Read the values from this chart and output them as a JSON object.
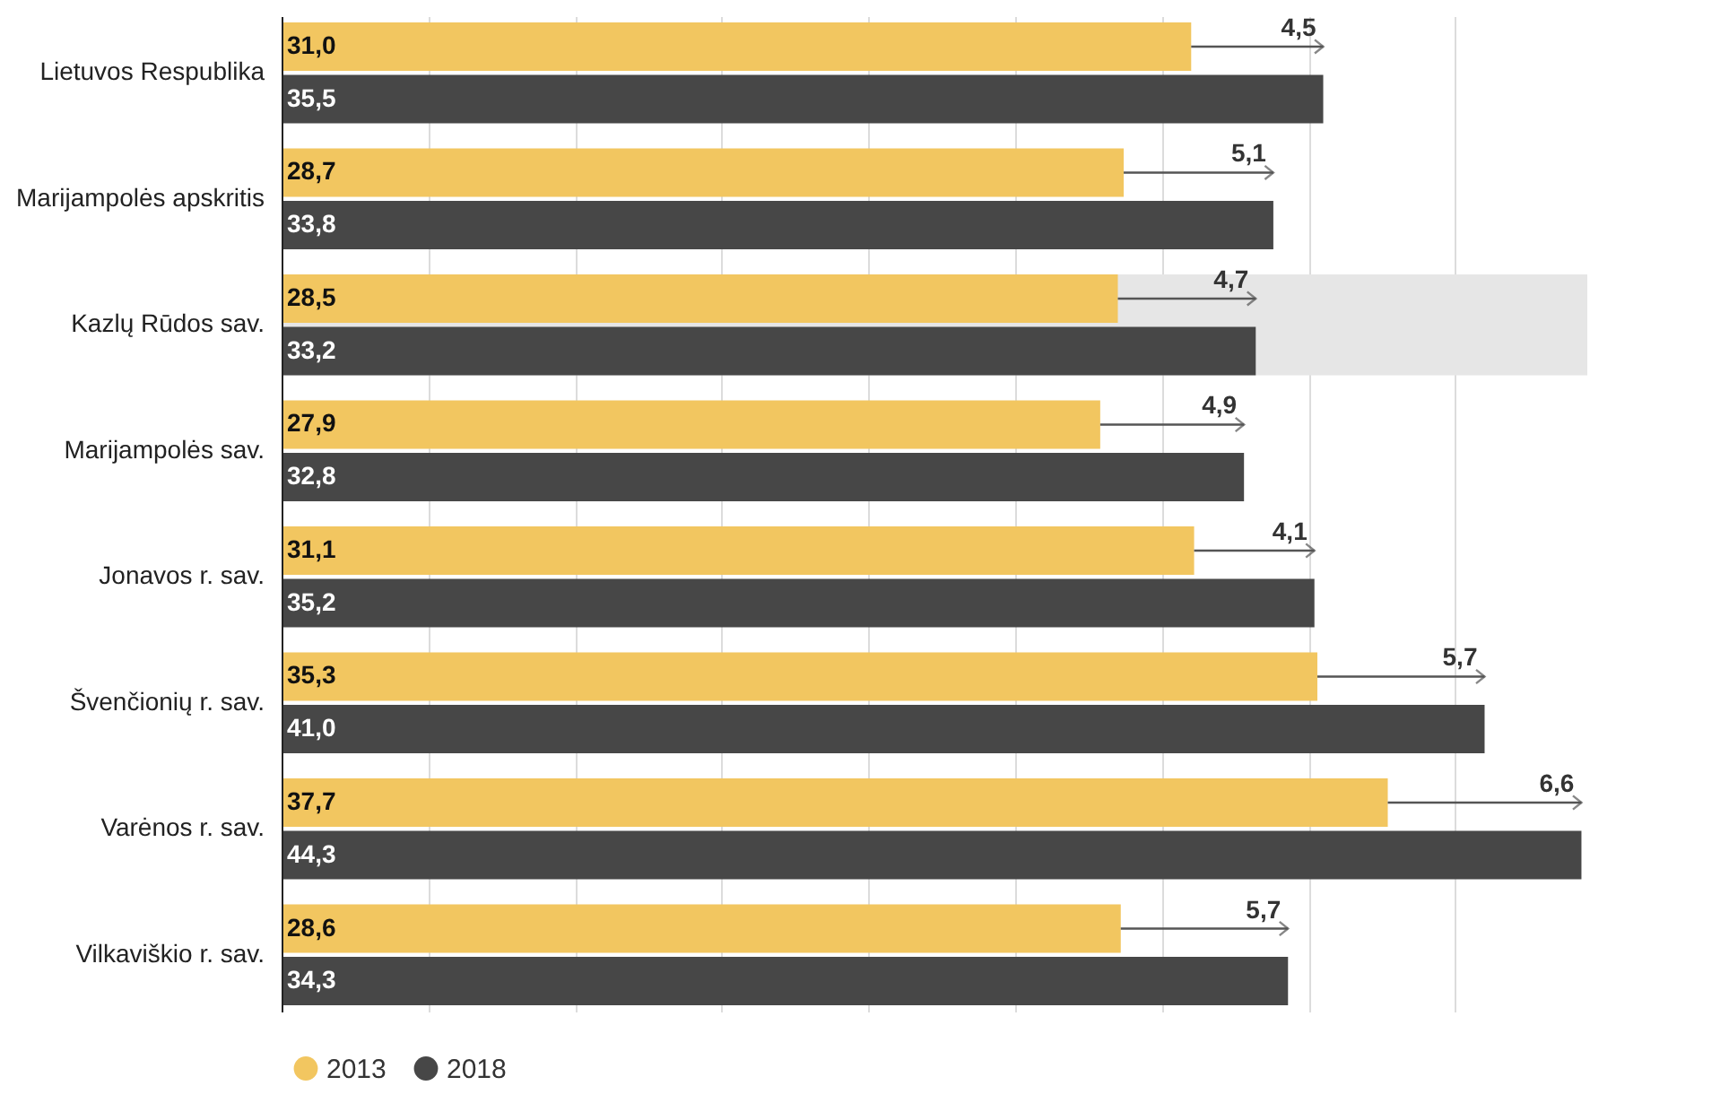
{
  "chart_data": {
    "type": "bar",
    "orientation": "horizontal",
    "categories": [
      "Lietuvos Respublika",
      "Marijampolės apskritis",
      "Kazlų Rūdos sav.",
      "Marijampolės sav.",
      "Jonavos r. sav.",
      "Švenčionių r. sav.",
      "Varėnos r. sav.",
      "Vilkaviškio r. sav."
    ],
    "series": [
      {
        "name": "2013",
        "color": "#f2c660",
        "values": [
          31.0,
          28.7,
          28.5,
          27.9,
          31.1,
          35.3,
          37.7,
          28.6
        ],
        "value_labels": [
          "31,0",
          "28,7",
          "28,5",
          "27,9",
          "31,1",
          "35,3",
          "37,7",
          "28,6"
        ]
      },
      {
        "name": "2018",
        "color": "#474747",
        "values": [
          35.5,
          33.8,
          33.2,
          32.8,
          35.2,
          41.0,
          44.3,
          34.3
        ],
        "value_labels": [
          "35,5",
          "33,8",
          "33,2",
          "32,8",
          "35,2",
          "41,0",
          "44,3",
          "34,3"
        ]
      }
    ],
    "xlim": [
      0,
      44.5
    ],
    "xticks": [
      {
        "value": 5,
        "label": null
      },
      {
        "value": 10,
        "label": null
      },
      {
        "value": 15,
        "label": null
      },
      {
        "value": 20,
        "label": null
      },
      {
        "value": 25,
        "label": null
      },
      {
        "value": 30,
        "label": null
      },
      {
        "value": 35,
        "label": null
      },
      {
        "value": 40,
        "label": null
      }
    ],
    "tick_labels": "y",
    "grid": "x",
    "legend": "bottom",
    "bands": [
      {
        "axis": "y",
        "from": "Kazlų Rūdos sav.",
        "to": "Kazlų Rūdos sav.",
        "color": "#e6e6e6"
      }
    ],
    "annotations": [
      {
        "text": "4,5",
        "x": 35.5,
        "y": "Lietuvos Respublika"
      },
      {
        "text": "5,1",
        "x": 33.8,
        "y": "Marijampolės apskritis"
      },
      {
        "text": "4,7",
        "x": 33.2,
        "y": "Kazlų Rūdos sav."
      },
      {
        "text": "4,9",
        "x": 32.8,
        "y": "Marijampolės sav."
      },
      {
        "text": "4,1",
        "x": 35.2,
        "y": "Jonavos r. sav."
      },
      {
        "text": "5,7",
        "x": 41.0,
        "y": "Švenčionių r. sav."
      },
      {
        "text": "6,6",
        "x": 44.3,
        "y": "Varėnos r. sav."
      },
      {
        "text": "5,7",
        "x": 34.3,
        "y": "Vilkaviškio r. sav."
      }
    ]
  }
}
